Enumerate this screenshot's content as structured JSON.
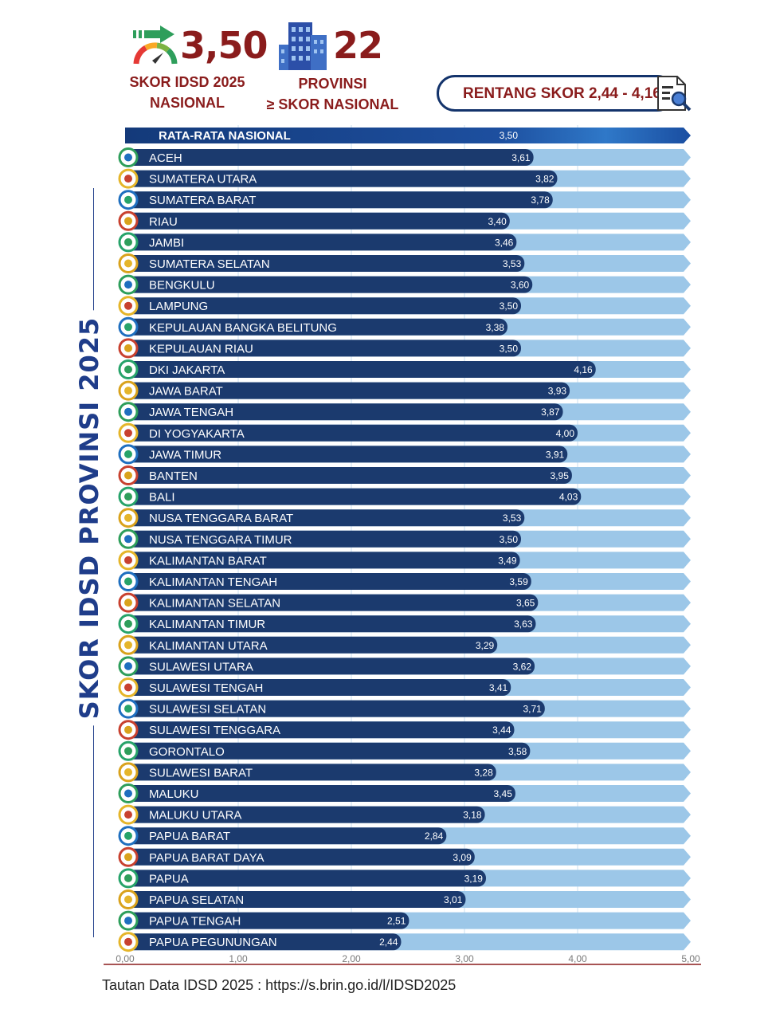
{
  "header": {
    "national_score": "3,50",
    "national_label_line1": "SKOR IDSD 2025",
    "national_label_line2": "NASIONAL",
    "provinces_count": "22",
    "provinces_label_line1": "PROVINSI",
    "provinces_label_line2": "≥ SKOR NASIONAL",
    "range_text": "RENTANG SKOR 2,44 - 4,16"
  },
  "side_title": "SKOR IDSD PROVINSI 2025",
  "footer": "Tautan Data IDSD 2025 : https://s.brin.go.id/l/IDSD2025",
  "colors": {
    "bar_dark": "#1b3a6e",
    "bar_light": "#9cc7e8",
    "national_bar": "#1a4ea1",
    "accent_red": "#8a1c1c",
    "gauge_green": "#2e9e5b"
  },
  "chart_data": {
    "type": "bar",
    "orientation": "horizontal",
    "xlim": [
      0,
      5
    ],
    "x_ticks": [
      "0,00",
      "1,00",
      "2,00",
      "3,00",
      "4,00",
      "5,00"
    ],
    "national": {
      "label": "RATA-RATA NASIONAL",
      "value": 3.5,
      "value_label": "3,50"
    },
    "categories": [
      "ACEH",
      "SUMATERA UTARA",
      "SUMATERA BARAT",
      "RIAU",
      "JAMBI",
      "SUMATERA SELATAN",
      "BENGKULU",
      "LAMPUNG",
      "KEPULAUAN BANGKA BELITUNG",
      "KEPULAUAN RIAU",
      "DKI JAKARTA",
      "JAWA BARAT",
      "JAWA TENGAH",
      "DI YOGYAKARTA",
      "JAWA TIMUR",
      "BANTEN",
      "BALI",
      "NUSA TENGGARA BARAT",
      "NUSA TENGGARA TIMUR",
      "KALIMANTAN BARAT",
      "KALIMANTAN TENGAH",
      "KALIMANTAN SELATAN",
      "KALIMANTAN TIMUR",
      "KALIMANTAN UTARA",
      "SULAWESI UTARA",
      "SULAWESI TENGAH",
      "SULAWESI SELATAN",
      "SULAWESI TENGGARA",
      "GORONTALO",
      "SULAWESI BARAT",
      "MALUKU",
      "MALUKU UTARA",
      "PAPUA BARAT",
      "PAPUA BARAT DAYA",
      "PAPUA",
      "PAPUA SELATAN",
      "PAPUA TENGAH",
      "PAPUA PEGUNUNGAN"
    ],
    "values": [
      3.61,
      3.82,
      3.78,
      3.4,
      3.46,
      3.53,
      3.6,
      3.5,
      3.38,
      3.5,
      4.16,
      3.93,
      3.87,
      4.0,
      3.91,
      3.95,
      4.03,
      3.53,
      3.5,
      3.49,
      3.59,
      3.65,
      3.63,
      3.29,
      3.62,
      3.41,
      3.71,
      3.44,
      3.58,
      3.28,
      3.45,
      3.18,
      2.84,
      3.09,
      3.19,
      3.01,
      2.51,
      2.44
    ],
    "value_labels": [
      "3,61",
      "3,82",
      "3,78",
      "3,40",
      "3,46",
      "3,53",
      "3,60",
      "3,50",
      "3,38",
      "3,50",
      "4,16",
      "3,93",
      "3,87",
      "4,00",
      "3,91",
      "3,95",
      "4,03",
      "3,53",
      "3,50",
      "3,49",
      "3,59",
      "3,65",
      "3,63",
      "3,29",
      "3,62",
      "3,41",
      "3,71",
      "3,44",
      "3,58",
      "3,28",
      "3,45",
      "3,18",
      "2,84",
      "3,09",
      "3,19",
      "3,01",
      "2,51",
      "2,44"
    ],
    "grid": true
  }
}
